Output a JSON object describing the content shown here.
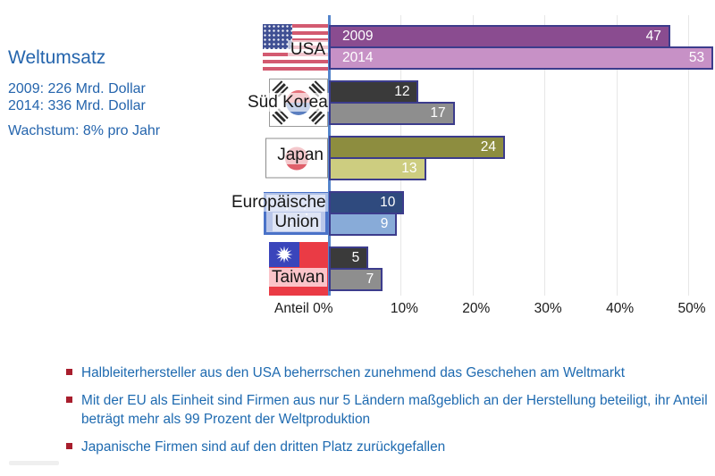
{
  "info_panel": {
    "title": "Weltumsatz",
    "line_2009": "2009: 226 Mrd. Dollar",
    "line_2014": "2014: 336 Mrd. Dollar",
    "growth": "Wachstum: 8% pro Jahr"
  },
  "chart_data": {
    "type": "bar",
    "orientation": "horizontal",
    "categories": [
      "USA",
      "Süd Korea",
      "Japan",
      "Europäische Union",
      "Taiwan"
    ],
    "series": [
      {
        "name": "2009",
        "values": [
          47,
          12,
          24,
          10,
          5
        ]
      },
      {
        "name": "2014",
        "values": [
          53,
          17,
          13,
          9,
          7
        ]
      }
    ],
    "bar_colors": [
      {
        "c2009": "#8a4c90",
        "c2014": "#c791c6"
      },
      {
        "c2009": "#3a3a3a",
        "c2014": "#8e8e8e"
      },
      {
        "c2009": "#8d8d3f",
        "c2014": "#cdcd80"
      },
      {
        "c2009": "#2f4a7e",
        "c2014": "#88abd8"
      },
      {
        "c2009": "#3a3a3a",
        "c2014": "#8e8e8e"
      }
    ],
    "flags": [
      "flag-usa",
      "flag-south-korea",
      "flag-japan",
      "flag-eu",
      "flag-taiwan"
    ],
    "xlabel": "Anteil",
    "tick_labels": [
      "0%",
      "10%",
      "20%",
      "30%",
      "40%",
      "50%"
    ],
    "xlim": [
      0,
      53
    ],
    "grid": true,
    "legend_note": "series year labels shown inside USA bars",
    "value_labels_color": "#ffffff",
    "bar_border_color": "#3c3c8c",
    "zero_line_color": "#5585cc"
  },
  "bullets": {
    "items": [
      "Halbleiterhersteller aus den USA beherrschen zunehmend das Geschehen am Weltmarkt",
      "Mit der EU als Einheit sind Firmen aus nur 5 Ländern maßgeblich an der Herstellung beteiligt, ihr Anteil beträgt mehr als 99 Prozent der Weltproduktion",
      "Japanische Firmen sind auf den dritten Platz zurückgefallen"
    ],
    "bullet_color": "#a81e2d",
    "text_color": "#1e6ab0"
  },
  "colors": {
    "accent_blue": "#2565ad"
  }
}
